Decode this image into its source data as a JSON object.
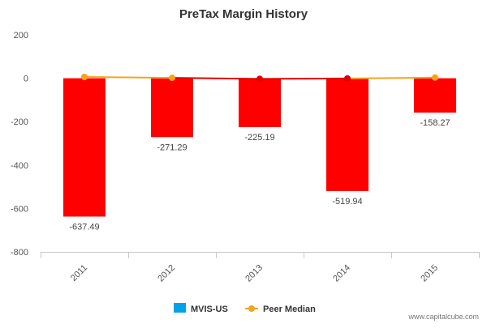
{
  "chart_data": {
    "type": "bar",
    "title": "PreTax Margin History",
    "categories": [
      "2011",
      "2012",
      "2013",
      "2014",
      "2015"
    ],
    "series": [
      {
        "name": "MVIS-US",
        "type": "bar",
        "values": [
          -637.49,
          -271.29,
          -225.19,
          -519.94,
          -158.27
        ],
        "bar_color": "#ff0000",
        "legend_color": "#00a2e8",
        "data_labels": [
          "-637.49",
          "-271.29",
          "-225.19",
          "-519.94",
          "-158.27"
        ]
      },
      {
        "name": "Peer Median",
        "type": "line",
        "values": [
          6,
          2,
          -3,
          -1,
          3
        ],
        "color": "#f5a31a",
        "marker_colors": [
          "#f5a31a",
          "#f5a31a",
          "#e00000",
          "#e00000",
          "#f5a31a"
        ],
        "segment_colors": [
          "#f5a31a",
          "#e00000",
          "#e00000",
          "#f5a31a"
        ]
      }
    ],
    "yticks": [
      200,
      0,
      -200,
      -400,
      -600,
      -800
    ],
    "ylim": [
      -800,
      200
    ],
    "xlabel": "",
    "ylabel": "",
    "grid": false,
    "legend_position": "bottom"
  },
  "source": "www.capitalcube.com"
}
